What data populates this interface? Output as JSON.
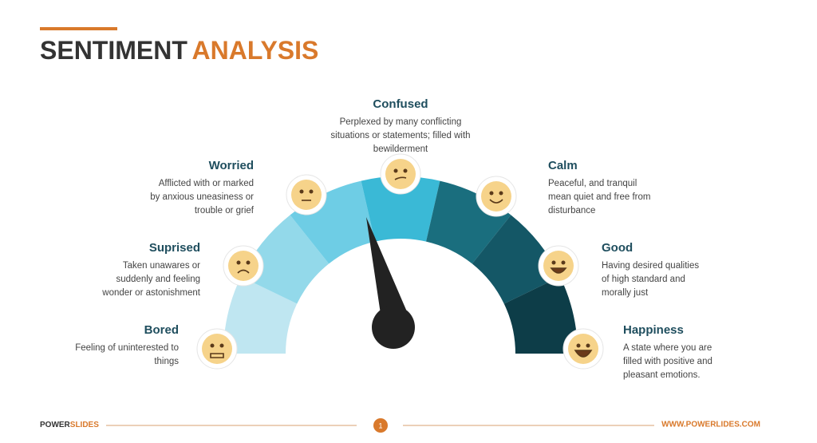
{
  "header": {
    "title_dark": "SENTIMENT",
    "title_accent": "ANALYSIS"
  },
  "sentiments": [
    {
      "name": "Bored",
      "description": [
        "Feeling of uninterested to",
        "things"
      ]
    },
    {
      "name": "Suprised",
      "description": [
        "Taken unawares or",
        "suddenly and feeling",
        "wonder or astonishment"
      ]
    },
    {
      "name": "Worried",
      "description": [
        "Afflicted with or marked",
        "by anxious uneasiness or",
        "trouble or grief"
      ]
    },
    {
      "name": "Confused",
      "description": [
        "Perplexed by many conflicting",
        "situations or statements; filled with",
        "bewilderment"
      ]
    },
    {
      "name": "Calm",
      "description": [
        "Peaceful, and tranquil",
        "mean quiet and free from",
        "disturbance"
      ]
    },
    {
      "name": "Good",
      "description": [
        "Having desired qualities",
        "of high standard and",
        "morally just"
      ]
    },
    {
      "name": "Happiness",
      "description": [
        "A state where you are",
        "filled with positive and",
        "pleasant emotions."
      ]
    }
  ],
  "footer": {
    "brand_dark": "POWER",
    "brand_accent": "SLIDES",
    "page": "1",
    "url": "WWW.POWERLIDES.COM"
  }
}
